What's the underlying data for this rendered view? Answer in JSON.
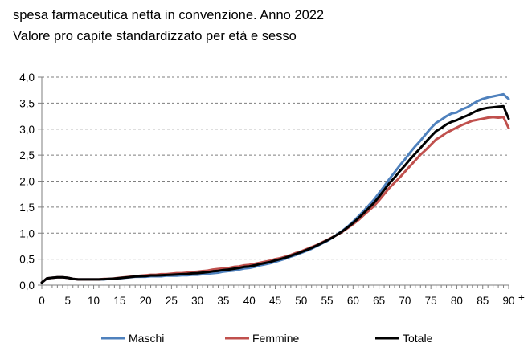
{
  "title_line1": "spesa farmaceutica netta in convenzione. Anno 2022",
  "title_line2": "Valore pro capite standardizzato per età e sesso",
  "chart_data": {
    "type": "line",
    "title": "spesa farmaceutica netta in convenzione. Anno 2022",
    "subtitle": "Valore pro capite standardizzato per età e sesso",
    "xlabel": "",
    "ylabel": "",
    "xlim": [
      0,
      90
    ],
    "ylim": [
      0,
      4
    ],
    "x_ticks": [
      "0",
      "5",
      "10",
      "15",
      "20",
      "25",
      "30",
      "35",
      "40",
      "45",
      "50",
      "55",
      "60",
      "65",
      "70",
      "75",
      "80",
      "85",
      "90"
    ],
    "x_last_suffix": "+",
    "y_ticks": [
      "0,0",
      "0,5",
      "1,0",
      "1,5",
      "2,0",
      "2,5",
      "3,0",
      "3,5",
      "4,0"
    ],
    "grid": "horizontal-dashed",
    "legend_position": "bottom",
    "x": [
      0,
      1,
      2,
      3,
      4,
      5,
      6,
      7,
      8,
      9,
      10,
      11,
      12,
      13,
      14,
      15,
      16,
      17,
      18,
      19,
      20,
      21,
      22,
      23,
      24,
      25,
      26,
      27,
      28,
      29,
      30,
      31,
      32,
      33,
      34,
      35,
      36,
      37,
      38,
      39,
      40,
      41,
      42,
      43,
      44,
      45,
      46,
      47,
      48,
      49,
      50,
      51,
      52,
      53,
      54,
      55,
      56,
      57,
      58,
      59,
      60,
      61,
      62,
      63,
      64,
      65,
      66,
      67,
      68,
      69,
      70,
      71,
      72,
      73,
      74,
      75,
      76,
      77,
      78,
      79,
      80,
      81,
      82,
      83,
      84,
      85,
      86,
      87,
      88,
      89,
      90
    ],
    "series": [
      {
        "name": "Maschi",
        "color": "#4f81bd",
        "values": [
          0.05,
          0.13,
          0.14,
          0.15,
          0.15,
          0.14,
          0.12,
          0.11,
          0.11,
          0.11,
          0.11,
          0.11,
          0.11,
          0.12,
          0.12,
          0.13,
          0.14,
          0.15,
          0.16,
          0.16,
          0.16,
          0.17,
          0.17,
          0.17,
          0.18,
          0.18,
          0.18,
          0.19,
          0.19,
          0.2,
          0.2,
          0.21,
          0.22,
          0.23,
          0.24,
          0.26,
          0.27,
          0.28,
          0.3,
          0.32,
          0.33,
          0.35,
          0.38,
          0.4,
          0.42,
          0.45,
          0.48,
          0.51,
          0.55,
          0.58,
          0.62,
          0.66,
          0.7,
          0.75,
          0.8,
          0.85,
          0.91,
          0.98,
          1.05,
          1.13,
          1.22,
          1.32,
          1.42,
          1.53,
          1.64,
          1.77,
          1.9,
          2.04,
          2.17,
          2.3,
          2.42,
          2.55,
          2.67,
          2.78,
          2.9,
          3.02,
          3.12,
          3.18,
          3.25,
          3.3,
          3.32,
          3.38,
          3.42,
          3.48,
          3.54,
          3.58,
          3.61,
          3.63,
          3.65,
          3.67,
          3.58
        ]
      },
      {
        "name": "Femmine",
        "color": "#c0504d",
        "values": [
          0.05,
          0.13,
          0.14,
          0.15,
          0.15,
          0.14,
          0.12,
          0.11,
          0.11,
          0.11,
          0.11,
          0.11,
          0.12,
          0.12,
          0.13,
          0.14,
          0.15,
          0.16,
          0.17,
          0.18,
          0.19,
          0.2,
          0.2,
          0.21,
          0.21,
          0.22,
          0.23,
          0.23,
          0.24,
          0.25,
          0.26,
          0.27,
          0.28,
          0.3,
          0.31,
          0.32,
          0.33,
          0.35,
          0.36,
          0.38,
          0.39,
          0.41,
          0.43,
          0.45,
          0.47,
          0.5,
          0.52,
          0.55,
          0.58,
          0.62,
          0.65,
          0.69,
          0.73,
          0.77,
          0.82,
          0.87,
          0.92,
          0.97,
          1.03,
          1.1,
          1.17,
          1.25,
          1.34,
          1.43,
          1.52,
          1.63,
          1.75,
          1.87,
          1.97,
          2.07,
          2.18,
          2.29,
          2.4,
          2.51,
          2.6,
          2.7,
          2.8,
          2.86,
          2.93,
          2.98,
          3.03,
          3.08,
          3.12,
          3.16,
          3.18,
          3.2,
          3.22,
          3.23,
          3.22,
          3.23,
          3.02
        ]
      },
      {
        "name": "Totale",
        "color": "#000000",
        "values": [
          0.05,
          0.13,
          0.14,
          0.15,
          0.15,
          0.14,
          0.12,
          0.11,
          0.11,
          0.11,
          0.11,
          0.11,
          0.115,
          0.12,
          0.125,
          0.135,
          0.145,
          0.155,
          0.165,
          0.17,
          0.175,
          0.185,
          0.185,
          0.19,
          0.195,
          0.2,
          0.205,
          0.21,
          0.215,
          0.225,
          0.23,
          0.24,
          0.25,
          0.265,
          0.275,
          0.29,
          0.3,
          0.315,
          0.33,
          0.35,
          0.36,
          0.38,
          0.405,
          0.425,
          0.445,
          0.475,
          0.5,
          0.53,
          0.565,
          0.6,
          0.635,
          0.675,
          0.715,
          0.76,
          0.81,
          0.86,
          0.915,
          0.975,
          1.04,
          1.115,
          1.195,
          1.285,
          1.38,
          1.48,
          1.58,
          1.7,
          1.83,
          1.96,
          2.07,
          2.19,
          2.3,
          2.42,
          2.53,
          2.64,
          2.75,
          2.86,
          2.96,
          3.02,
          3.09,
          3.14,
          3.17,
          3.22,
          3.26,
          3.31,
          3.36,
          3.39,
          3.41,
          3.42,
          3.43,
          3.44,
          3.2
        ]
      }
    ]
  }
}
